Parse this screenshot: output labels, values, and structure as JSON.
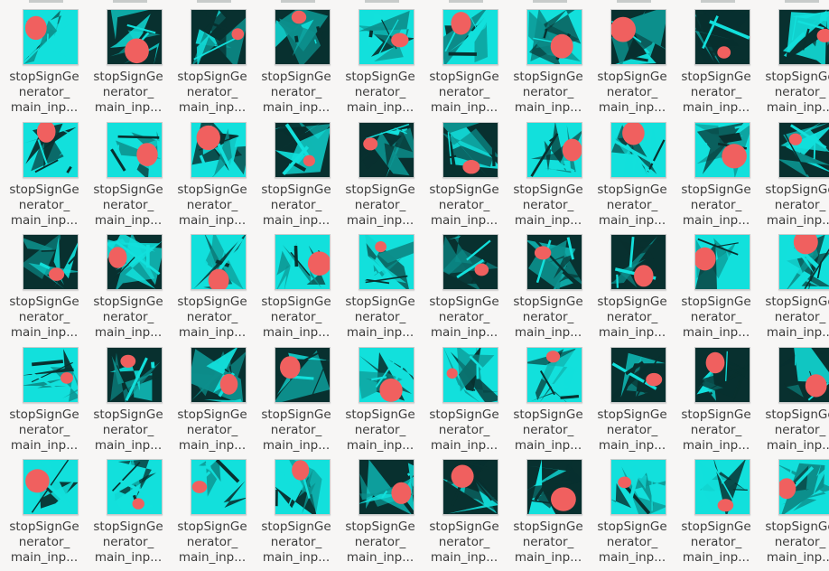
{
  "file_label_lines": [
    "stopSignGe",
    "nerator_",
    "main_inp..."
  ],
  "colors": {
    "background": "#f7f6f5",
    "thumb_dark": "#08302f",
    "thumb_cyan": "#12e0dc",
    "thumb_mid": "#0c8f8c",
    "sign_red": "#f0605f",
    "label_text": "#3c3c3c"
  },
  "files": [
    {
      "icon": "stop-sign-image-thumbnail",
      "variant": 0
    },
    {
      "icon": "stop-sign-image-thumbnail",
      "variant": 1
    },
    {
      "icon": "stop-sign-image-thumbnail",
      "variant": 2
    },
    {
      "icon": "stop-sign-image-thumbnail",
      "variant": 3
    },
    {
      "icon": "stop-sign-image-thumbnail",
      "variant": 4
    },
    {
      "icon": "stop-sign-image-thumbnail",
      "variant": 5
    },
    {
      "icon": "stop-sign-image-thumbnail",
      "variant": 6
    },
    {
      "icon": "stop-sign-image-thumbnail",
      "variant": 7
    },
    {
      "icon": "stop-sign-image-thumbnail",
      "variant": 8
    },
    {
      "icon": "stop-sign-image-thumbnail",
      "variant": 9
    },
    {
      "icon": "stop-sign-image-thumbnail",
      "variant": 10
    },
    {
      "icon": "stop-sign-image-thumbnail",
      "variant": 11
    },
    {
      "icon": "stop-sign-image-thumbnail",
      "variant": 12
    },
    {
      "icon": "stop-sign-image-thumbnail",
      "variant": 13
    },
    {
      "icon": "stop-sign-image-thumbnail",
      "variant": 14
    },
    {
      "icon": "stop-sign-image-thumbnail",
      "variant": 15
    },
    {
      "icon": "stop-sign-image-thumbnail",
      "variant": 16
    },
    {
      "icon": "stop-sign-image-thumbnail",
      "variant": 17
    },
    {
      "icon": "stop-sign-image-thumbnail",
      "variant": 18
    },
    {
      "icon": "stop-sign-image-thumbnail",
      "variant": 19
    },
    {
      "icon": "stop-sign-image-thumbnail",
      "variant": 20
    },
    {
      "icon": "stop-sign-image-thumbnail",
      "variant": 21
    },
    {
      "icon": "stop-sign-image-thumbnail",
      "variant": 22
    },
    {
      "icon": "stop-sign-image-thumbnail",
      "variant": 23
    },
    {
      "icon": "stop-sign-image-thumbnail",
      "variant": 24
    },
    {
      "icon": "stop-sign-image-thumbnail",
      "variant": 25
    },
    {
      "icon": "stop-sign-image-thumbnail",
      "variant": 26
    },
    {
      "icon": "stop-sign-image-thumbnail",
      "variant": 27
    },
    {
      "icon": "stop-sign-image-thumbnail",
      "variant": 28
    },
    {
      "icon": "stop-sign-image-thumbnail",
      "variant": 29
    },
    {
      "icon": "stop-sign-image-thumbnail",
      "variant": 30
    },
    {
      "icon": "stop-sign-image-thumbnail",
      "variant": 31
    },
    {
      "icon": "stop-sign-image-thumbnail",
      "variant": 32
    },
    {
      "icon": "stop-sign-image-thumbnail",
      "variant": 33
    },
    {
      "icon": "stop-sign-image-thumbnail",
      "variant": 34
    },
    {
      "icon": "stop-sign-image-thumbnail",
      "variant": 35
    },
    {
      "icon": "stop-sign-image-thumbnail",
      "variant": 36
    },
    {
      "icon": "stop-sign-image-thumbnail",
      "variant": 37
    },
    {
      "icon": "stop-sign-image-thumbnail",
      "variant": 38
    },
    {
      "icon": "stop-sign-image-thumbnail",
      "variant": 39
    },
    {
      "icon": "stop-sign-image-thumbnail",
      "variant": 40
    },
    {
      "icon": "stop-sign-image-thumbnail",
      "variant": 41
    },
    {
      "icon": "stop-sign-image-thumbnail",
      "variant": 42
    },
    {
      "icon": "stop-sign-image-thumbnail",
      "variant": 43
    },
    {
      "icon": "stop-sign-image-thumbnail",
      "variant": 44
    },
    {
      "icon": "stop-sign-image-thumbnail",
      "variant": 45
    },
    {
      "icon": "stop-sign-image-thumbnail",
      "variant": 46
    },
    {
      "icon": "stop-sign-image-thumbnail",
      "variant": 47
    },
    {
      "icon": "stop-sign-image-thumbnail",
      "variant": 48
    },
    {
      "icon": "stop-sign-image-thumbnail",
      "variant": 49
    }
  ]
}
